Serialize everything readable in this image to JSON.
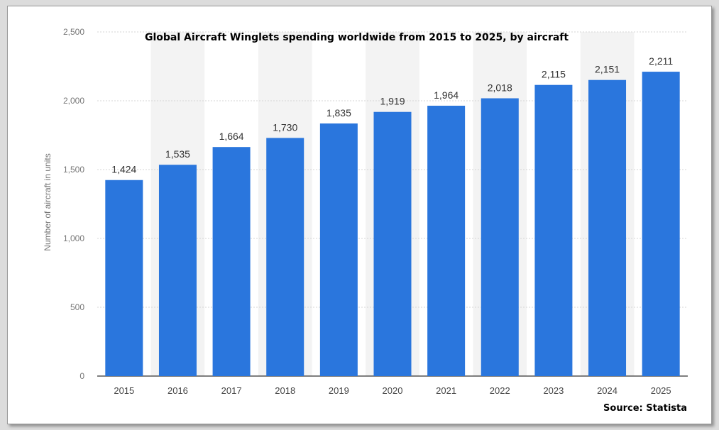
{
  "chart_data": {
    "type": "bar",
    "title": "Global Aircraft Winglets spending worldwide from 2015 to 2025, by aircraft",
    "xlabel": "",
    "ylabel": "Number of aircraft in units",
    "categories": [
      "2015",
      "2016",
      "2017",
      "2018",
      "2019",
      "2020",
      "2021",
      "2022",
      "2023",
      "2024",
      "2025"
    ],
    "values": [
      1424,
      1535,
      1664,
      1730,
      1835,
      1919,
      1964,
      2018,
      2115,
      2151,
      2211
    ],
    "value_labels": [
      "1,424",
      "1,535",
      "1,664",
      "1,730",
      "1,835",
      "1,919",
      "1,964",
      "2,018",
      "2,115",
      "2,151",
      "2,211"
    ],
    "yticks": [
      0,
      500,
      1000,
      1500,
      2000,
      2500
    ],
    "ytick_labels": [
      "0",
      "500",
      "1,000",
      "1,500",
      "2,000",
      "2,500"
    ],
    "ylim": [
      0,
      2500
    ],
    "grid": true,
    "legend": "none",
    "bar_color": "#2a76dd",
    "band_color": "#f3f3f3"
  },
  "source": "Source: Statista"
}
